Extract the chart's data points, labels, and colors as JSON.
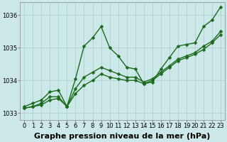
{
  "xlabel": "Graphe pression niveau de la mer (hPa)",
  "bg_color": "#cce8e8",
  "grid_color": "#aacccc",
  "line_color": "#1a6b1a",
  "x_ticks": [
    0,
    1,
    2,
    3,
    4,
    5,
    6,
    7,
    8,
    9,
    10,
    11,
    12,
    13,
    14,
    15,
    16,
    17,
    18,
    19,
    20,
    21,
    22,
    23
  ],
  "ylim": [
    1032.8,
    1036.4
  ],
  "yticks": [
    1033,
    1034,
    1035,
    1036
  ],
  "line1_y": [
    1033.2,
    1033.3,
    1033.4,
    1033.65,
    1033.7,
    1033.2,
    1034.05,
    1035.05,
    1035.3,
    1035.65,
    1035.0,
    1034.75,
    1034.4,
    1034.35,
    1033.9,
    1033.95,
    1034.35,
    1034.7,
    1035.05,
    1035.1,
    1035.15,
    1035.65,
    1035.85,
    1036.25
  ],
  "line2_y": [
    1033.15,
    1033.2,
    1033.25,
    1033.4,
    1033.45,
    1033.2,
    1033.6,
    1033.85,
    1034.0,
    1034.2,
    1034.1,
    1034.05,
    1034.0,
    1034.0,
    1033.9,
    1034.0,
    1034.2,
    1034.4,
    1034.6,
    1034.7,
    1034.8,
    1034.95,
    1035.15,
    1035.4
  ],
  "line3_y": [
    1033.15,
    1033.2,
    1033.3,
    1033.5,
    1033.5,
    1033.2,
    1033.75,
    1034.1,
    1034.25,
    1034.4,
    1034.3,
    1034.2,
    1034.1,
    1034.1,
    1033.95,
    1034.05,
    1034.25,
    1034.45,
    1034.65,
    1034.75,
    1034.85,
    1035.05,
    1035.2,
    1035.5
  ],
  "marker": "D",
  "markersize": 2.5,
  "linewidth": 1.0,
  "xlabel_fontsize": 8,
  "xlabel_fontweight": "bold",
  "tick_fontsize": 6
}
